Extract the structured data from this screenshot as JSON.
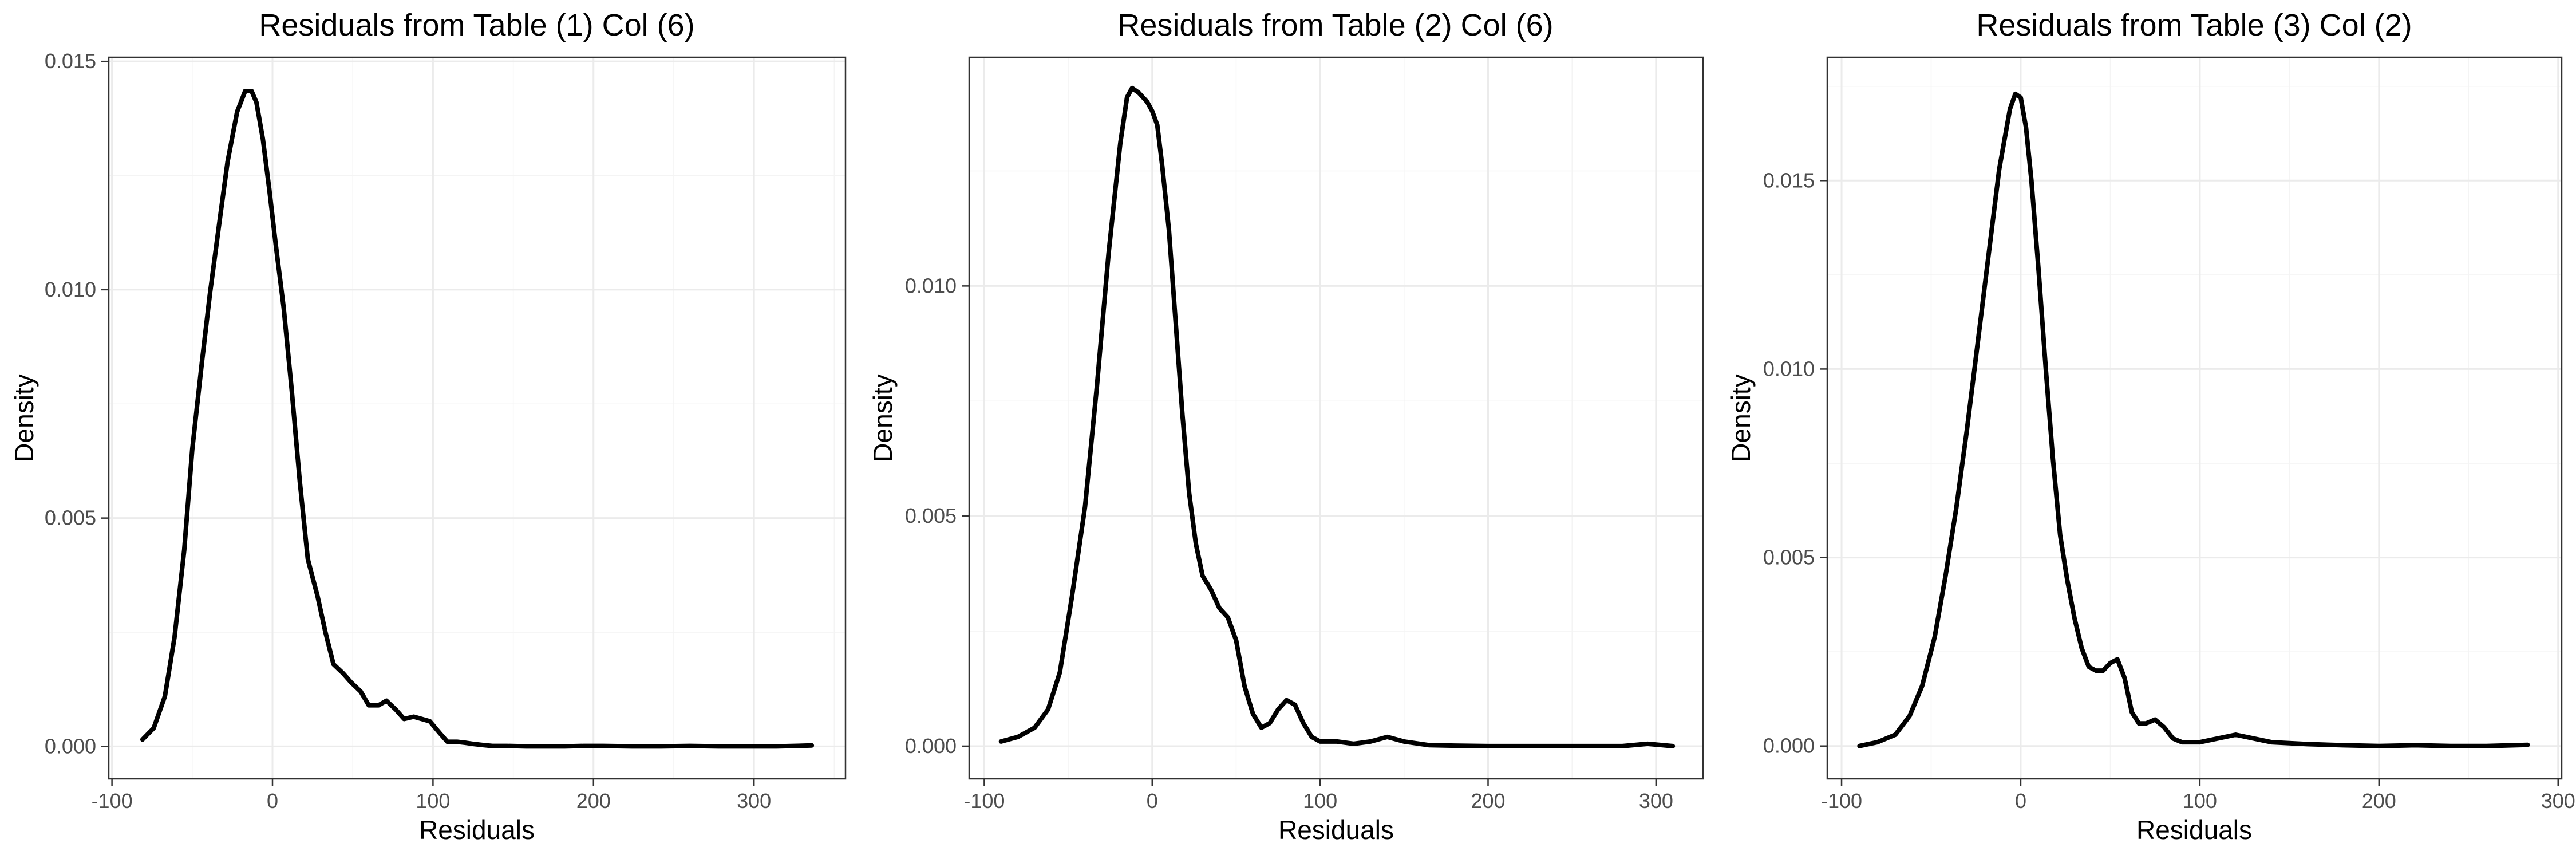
{
  "chart_data": [
    {
      "type": "line",
      "title": "Residuals from Table (1) Col (6)",
      "xlabel": "Residuals",
      "ylabel": "Density",
      "xlim": [
        -102,
        357
      ],
      "ylim": [
        -0.00071,
        0.01509
      ],
      "xticks": [
        -100,
        0,
        100,
        200,
        300
      ],
      "xtick_labels": [
        "-100",
        "0",
        "100",
        "200",
        "300"
      ],
      "yticks": [
        0,
        0.005,
        0.01,
        0.015
      ],
      "ytick_labels": [
        "0.000",
        "0.005",
        "0.010",
        "0.015"
      ],
      "grid": true,
      "series": [
        {
          "color": "#000000",
          "x": [
            -81,
            -74,
            -67,
            -61,
            -55,
            -50,
            -44,
            -39,
            -33,
            -28,
            -22,
            -17,
            -13,
            -10,
            -6,
            -2,
            2,
            7,
            12,
            17,
            22,
            28,
            33,
            38,
            44,
            49,
            55,
            60,
            66,
            71,
            77,
            82,
            88,
            93,
            98,
            104,
            109,
            115,
            120,
            126,
            131,
            137,
            146,
            158,
            170,
            182,
            194,
            206,
            224,
            242,
            260,
            278,
            296,
            314,
            336
          ],
          "y": [
            0.00015,
            0.0004,
            0.0011,
            0.0024,
            0.0043,
            0.0065,
            0.0084,
            0.0099,
            0.0115,
            0.0128,
            0.0139,
            0.01435,
            0.01435,
            0.0141,
            0.0133,
            0.0122,
            0.011,
            0.0096,
            0.0078,
            0.0058,
            0.0041,
            0.0033,
            0.0025,
            0.0018,
            0.0016,
            0.0014,
            0.0012,
            0.0009,
            0.0009,
            0.001,
            0.0008,
            0.0006,
            0.00065,
            0.0006,
            0.00055,
            0.0003,
            0.0001,
            0.0001,
            8e-05,
            5e-05,
            3e-05,
            1e-05,
            1e-05,
            0.0,
            0.0,
            0.0,
            1e-05,
            1e-05,
            0.0,
            0.0,
            1e-05,
            0.0,
            0.0,
            0.0,
            2e-05
          ]
        }
      ]
    },
    {
      "type": "line",
      "title": "Residuals from Table (2) Col (6)",
      "xlabel": "Residuals",
      "ylabel": "Density",
      "xlim": [
        -109,
        328
      ],
      "ylim": [
        -0.00071,
        0.01497
      ],
      "xticks": [
        -100,
        0,
        100,
        200,
        300
      ],
      "xtick_labels": [
        "-100",
        "0",
        "100",
        "200",
        "300"
      ],
      "yticks": [
        0,
        0.005,
        0.01
      ],
      "ytick_labels": [
        "0.000",
        "0.005",
        "0.010"
      ],
      "grid": true,
      "series": [
        {
          "color": "#000000",
          "x": [
            -90,
            -80,
            -70,
            -62,
            -55,
            -48,
            -40,
            -33,
            -26,
            -19,
            -15,
            -12,
            -8,
            -3,
            0,
            3,
            6,
            10,
            14,
            18,
            22,
            26,
            30,
            35,
            40,
            45,
            50,
            55,
            60,
            65,
            70,
            75,
            80,
            85,
            90,
            95,
            100,
            110,
            120,
            130,
            140,
            150,
            165,
            180,
            200,
            220,
            240,
            260,
            280,
            295,
            310
          ],
          "y": [
            0.0001,
            0.0002,
            0.0004,
            0.0008,
            0.0016,
            0.0032,
            0.0052,
            0.0078,
            0.0107,
            0.0131,
            0.0141,
            0.0143,
            0.0142,
            0.014,
            0.0138,
            0.0135,
            0.0126,
            0.0112,
            0.0092,
            0.0072,
            0.0055,
            0.0044,
            0.0037,
            0.0034,
            0.003,
            0.0028,
            0.0023,
            0.0013,
            0.0007,
            0.0004,
            0.0005,
            0.0008,
            0.001,
            0.0009,
            0.0005,
            0.0002,
            0.0001,
            0.0001,
            5e-05,
            0.0001,
            0.0002,
            0.0001,
            2e-05,
            1e-05,
            0.0,
            0.0,
            0.0,
            0.0,
            0.0,
            5e-05,
            0.0
          ]
        }
      ]
    },
    {
      "type": "line",
      "title": "Residuals from Table (3) Col (2)",
      "xlabel": "Residuals",
      "ylabel": "Density",
      "xlim": [
        -108,
        302
      ],
      "ylim": [
        -0.00087,
        0.01827
      ],
      "xticks": [
        -100,
        0,
        100,
        200,
        300
      ],
      "xtick_labels": [
        "-100",
        "0",
        "100",
        "200",
        "300"
      ],
      "yticks": [
        0,
        0.005,
        0.01,
        0.015
      ],
      "ytick_labels": [
        "0.000",
        "0.005",
        "0.010",
        "0.015"
      ],
      "grid": true,
      "series": [
        {
          "color": "#000000",
          "x": [
            -90,
            -80,
            -70,
            -62,
            -55,
            -48,
            -42,
            -36,
            -30,
            -24,
            -18,
            -12,
            -6,
            -3,
            0,
            3,
            6,
            10,
            14,
            18,
            22,
            26,
            30,
            34,
            38,
            42,
            46,
            50,
            54,
            58,
            62,
            66,
            70,
            75,
            80,
            85,
            90,
            95,
            100,
            110,
            120,
            130,
            140,
            160,
            180,
            200,
            220,
            240,
            260,
            283
          ],
          "y": [
            0.0,
            0.0001,
            0.0003,
            0.0008,
            0.0016,
            0.0029,
            0.0045,
            0.0063,
            0.0084,
            0.0107,
            0.013,
            0.0153,
            0.0169,
            0.0173,
            0.0172,
            0.0164,
            0.015,
            0.0126,
            0.01,
            0.0076,
            0.0056,
            0.0044,
            0.0034,
            0.0026,
            0.0021,
            0.002,
            0.002,
            0.0022,
            0.0023,
            0.0018,
            0.0009,
            0.0006,
            0.0006,
            0.0007,
            0.0005,
            0.0002,
            0.0001,
            0.0001,
            0.0001,
            0.0002,
            0.0003,
            0.0002,
            0.0001,
            5e-05,
            2e-05,
            0.0,
            2e-05,
            0.0,
            0.0,
            3e-05
          ]
        }
      ]
    }
  ]
}
